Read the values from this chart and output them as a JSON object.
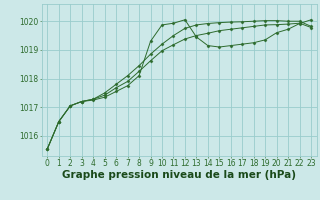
{
  "bg_color": "#cce8e8",
  "grid_color": "#99cccc",
  "line_color": "#2d6b2d",
  "marker_color": "#2d6b2d",
  "xlabel": "Graphe pression niveau de la mer (hPa)",
  "xlabel_color": "#1a4a1a",
  "ylim": [
    1015.3,
    1020.6
  ],
  "xlim": [
    -0.5,
    23.5
  ],
  "yticks": [
    1016,
    1017,
    1018,
    1019,
    1020
  ],
  "xticks": [
    0,
    1,
    2,
    3,
    4,
    5,
    6,
    7,
    8,
    9,
    10,
    11,
    12,
    13,
    14,
    15,
    16,
    17,
    18,
    19,
    20,
    21,
    22,
    23
  ],
  "series1": [
    1015.55,
    1016.5,
    1017.05,
    1017.2,
    1017.25,
    1017.35,
    1017.55,
    1017.75,
    1018.1,
    1019.3,
    1019.87,
    1019.93,
    1020.05,
    1019.45,
    1019.15,
    1019.1,
    1019.15,
    1019.2,
    1019.25,
    1019.35,
    1019.6,
    1019.72,
    1019.92,
    1020.05
  ],
  "series2": [
    1015.55,
    1016.5,
    1017.05,
    1017.2,
    1017.28,
    1017.5,
    1017.8,
    1018.1,
    1018.45,
    1018.85,
    1019.2,
    1019.5,
    1019.75,
    1019.87,
    1019.92,
    1019.95,
    1019.97,
    1019.98,
    1020.0,
    1020.02,
    1020.02,
    1020.0,
    1020.0,
    1019.82
  ],
  "series3": [
    1015.55,
    1016.5,
    1017.05,
    1017.2,
    1017.28,
    1017.42,
    1017.68,
    1017.9,
    1018.25,
    1018.62,
    1018.97,
    1019.18,
    1019.38,
    1019.5,
    1019.58,
    1019.67,
    1019.72,
    1019.77,
    1019.82,
    1019.87,
    1019.88,
    1019.9,
    1019.93,
    1019.78
  ],
  "tick_fontsize": 5.5,
  "xlabel_fontsize": 7.5,
  "figsize": [
    3.2,
    2.0
  ],
  "dpi": 100
}
